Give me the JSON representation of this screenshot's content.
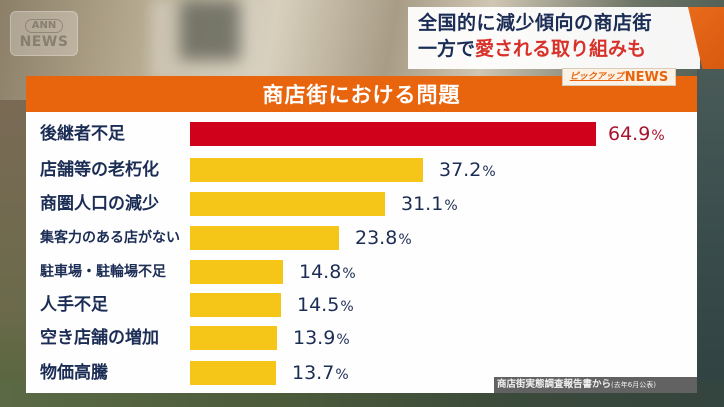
{
  "logo": {
    "line1": "ANN",
    "line2": "NEWS"
  },
  "headline": {
    "line1": "全国的に減少傾向の商店街",
    "line2_dark": "一方で",
    "line2_red": "愛される取り組みも"
  },
  "pickup_badge": {
    "prefix": "ピックアップ",
    "suffix": "NEWS"
  },
  "source_note": {
    "main": "商店街実態調査報告書から",
    "detail": "(去年6月公表)"
  },
  "colors": {
    "title_bar": "#e8650e",
    "highlight_bar": "#d0021b",
    "normal_bar": "#f5c518",
    "label_text": "#1c2d55",
    "highlight_value": "#a8132f"
  },
  "chart_data": {
    "type": "bar",
    "orientation": "horizontal",
    "title": "商店街における問題",
    "xlabel": "",
    "ylabel": "",
    "unit": "%",
    "categories": [
      "後継者不足",
      "店舗等の老朽化",
      "商圏人口の減少",
      "集客力のある店がない",
      "駐車場・駐輪場不足",
      "人手不足",
      "空き店舗の増加",
      "物価高騰"
    ],
    "values": [
      64.9,
      37.2,
      31.1,
      23.8,
      14.8,
      14.5,
      13.9,
      13.7
    ],
    "value_labels": [
      "64.9",
      "37.2",
      "31.1",
      "23.8",
      "14.8",
      "14.5",
      "13.9",
      "13.7"
    ],
    "highlighted_index": 0,
    "grid": false,
    "legend": "none",
    "source": "商店街実態調査報告書から(去年6月公表)"
  }
}
